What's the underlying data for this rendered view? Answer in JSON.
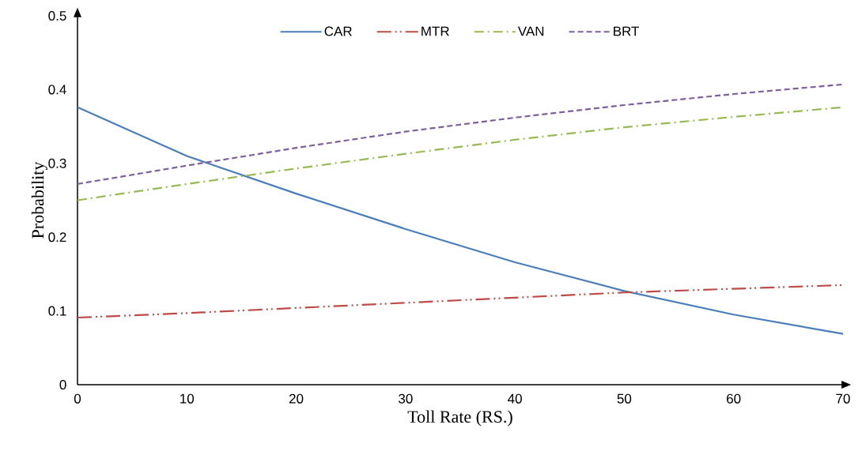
{
  "chart_data": {
    "type": "line",
    "xlabel": "Toll Rate (RS.)",
    "ylabel": "Probability",
    "x": [
      0,
      10,
      20,
      30,
      40,
      50,
      60,
      70
    ],
    "series": [
      {
        "name": "CAR",
        "color": "#4a7ebb",
        "line_style": "solid",
        "values": [
          0.376,
          0.31,
          0.259,
          0.211,
          0.166,
          0.127,
          0.095,
          0.069
        ]
      },
      {
        "name": "MTR",
        "color": "#be4b48",
        "line_style": "dashdotdot",
        "values": [
          0.091,
          0.097,
          0.104,
          0.111,
          0.118,
          0.125,
          0.13,
          0.135
        ]
      },
      {
        "name": "VAN",
        "color": "#98b954",
        "line_style": "dashdot",
        "values": [
          0.25,
          0.272,
          0.293,
          0.313,
          0.332,
          0.349,
          0.363,
          0.376
        ]
      },
      {
        "name": "BRT",
        "color": "#7d60a0",
        "line_style": "dashed",
        "values": [
          0.272,
          0.297,
          0.321,
          0.343,
          0.362,
          0.379,
          0.394,
          0.407
        ]
      }
    ],
    "xlim": [
      0,
      70
    ],
    "ylim": [
      0,
      0.5
    ],
    "xticks": [
      0,
      10,
      20,
      30,
      40,
      50,
      60,
      70
    ],
    "yticks": [
      0,
      0.1,
      0.2,
      0.3,
      0.4,
      0.5
    ],
    "grid": false,
    "legend": "top",
    "marker": "none"
  }
}
